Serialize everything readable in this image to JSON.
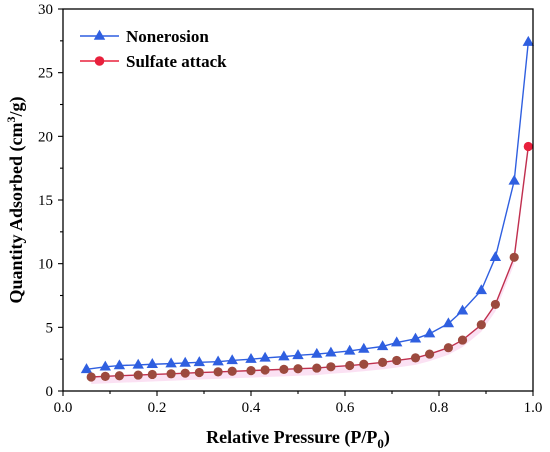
{
  "chart_data": {
    "type": "line",
    "title": "",
    "xlabel": "Relative Pressure (P/P",
    "xlabel_sub": "0",
    "xlabel_close": ")",
    "ylabel_main": "Quantity Adsorbed (cm",
    "ylabel_sup": "3",
    "ylabel_end": "/g)",
    "xlim": [
      0.0,
      1.0
    ],
    "ylim": [
      0,
      30
    ],
    "xticks": [
      "0.0",
      "0.2",
      "0.4",
      "0.6",
      "0.8",
      "1.0"
    ],
    "yticks": [
      "0",
      "5",
      "10",
      "15",
      "20",
      "25",
      "30"
    ],
    "grid": false,
    "legend_position": "top-left",
    "series": [
      {
        "name": "Nonerosion",
        "color": "#2f5fe0",
        "marker": "triangle",
        "x": [
          0.05,
          0.09,
          0.12,
          0.16,
          0.19,
          0.23,
          0.26,
          0.29,
          0.33,
          0.36,
          0.4,
          0.43,
          0.47,
          0.5,
          0.54,
          0.57,
          0.61,
          0.64,
          0.68,
          0.71,
          0.75,
          0.78,
          0.82,
          0.85,
          0.89,
          0.92,
          0.96,
          0.99
        ],
        "y": [
          1.7,
          1.9,
          2.0,
          2.05,
          2.1,
          2.15,
          2.2,
          2.25,
          2.3,
          2.4,
          2.5,
          2.6,
          2.7,
          2.8,
          2.9,
          3.0,
          3.15,
          3.3,
          3.5,
          3.8,
          4.1,
          4.5,
          5.3,
          6.3,
          7.9,
          10.5,
          16.5,
          27.4
        ]
      },
      {
        "name": "Sulfate attack",
        "color": "#e8203c",
        "line_color": "#c0304e",
        "marker_color": "#9c4a3e",
        "marker": "circle",
        "x": [
          0.06,
          0.09,
          0.12,
          0.16,
          0.19,
          0.23,
          0.26,
          0.29,
          0.33,
          0.36,
          0.4,
          0.43,
          0.47,
          0.5,
          0.54,
          0.57,
          0.61,
          0.64,
          0.68,
          0.71,
          0.75,
          0.78,
          0.82,
          0.85,
          0.89,
          0.92,
          0.96,
          0.99
        ],
        "y": [
          1.1,
          1.15,
          1.2,
          1.25,
          1.3,
          1.35,
          1.4,
          1.45,
          1.5,
          1.55,
          1.6,
          1.65,
          1.7,
          1.75,
          1.8,
          1.9,
          2.0,
          2.1,
          2.25,
          2.4,
          2.6,
          2.9,
          3.4,
          4.0,
          5.2,
          6.8,
          10.5,
          19.2
        ]
      }
    ]
  }
}
